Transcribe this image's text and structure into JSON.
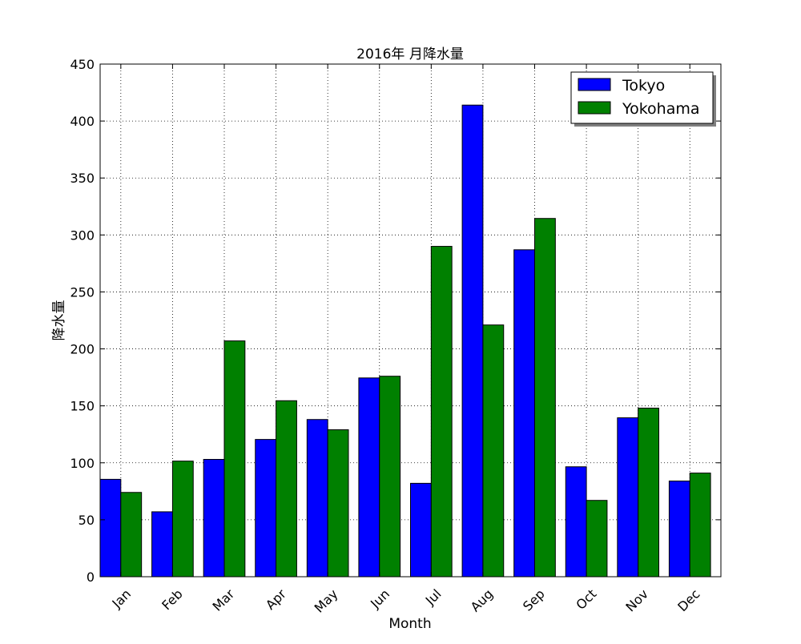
{
  "chart_data": {
    "type": "bar",
    "title": "2016年 月降水量",
    "xlabel": "Month",
    "ylabel": "降水量",
    "categories": [
      "Jan",
      "Feb",
      "Mar",
      "Apr",
      "May",
      "Jun",
      "Jul",
      "Aug",
      "Sep",
      "Oct",
      "Nov",
      "Dec"
    ],
    "series": [
      {
        "name": "Tokyo",
        "color": "#0000ff",
        "values": [
          85.5,
          57.0,
          103.0,
          120.5,
          138.0,
          174.5,
          82.0,
          414.0,
          287.0,
          96.5,
          139.5,
          84.0
        ]
      },
      {
        "name": "Yokohama",
        "color": "#008000",
        "values": [
          74.0,
          101.5,
          207.0,
          154.5,
          129.0,
          176.0,
          290.0,
          221.0,
          314.5,
          67.0,
          148.0,
          91.0
        ]
      }
    ],
    "ylim": [
      0,
      450
    ],
    "yticks": [
      "0",
      "50",
      "100",
      "150",
      "200",
      "250",
      "300",
      "350",
      "400",
      "450"
    ],
    "grid": true,
    "grid_style": "dotted",
    "legend_position": "top-right",
    "xtick_rotation_deg": 45
  }
}
